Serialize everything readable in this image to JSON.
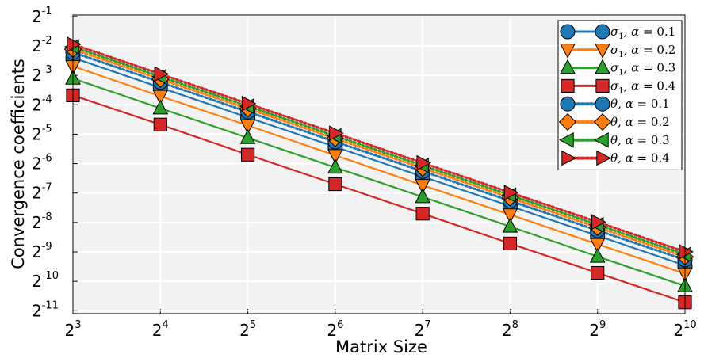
{
  "chart_data": {
    "type": "line",
    "title": "",
    "xlabel": "Matrix Size",
    "ylabel": "Convergence coefficients",
    "xscale": "log2",
    "yscale": "log2",
    "xlim_exp": [
      3,
      10
    ],
    "ylim_exp": [
      -11.1,
      -0.95
    ],
    "grid": true,
    "legend_position": "top-right",
    "x_tick_labels": [
      {
        "base": "2",
        "exp": "3"
      },
      {
        "base": "2",
        "exp": "4"
      },
      {
        "base": "2",
        "exp": "5"
      },
      {
        "base": "2",
        "exp": "6"
      },
      {
        "base": "2",
        "exp": "7"
      },
      {
        "base": "2",
        "exp": "8"
      },
      {
        "base": "2",
        "exp": "9"
      },
      {
        "base": "2",
        "exp": "10"
      }
    ],
    "y_tick_labels": [
      {
        "base": "2",
        "exp": "-1"
      },
      {
        "base": "2",
        "exp": "-2"
      },
      {
        "base": "2",
        "exp": "-3"
      },
      {
        "base": "2",
        "exp": "-4"
      },
      {
        "base": "2",
        "exp": "-5"
      },
      {
        "base": "2",
        "exp": "-6"
      },
      {
        "base": "2",
        "exp": "-7"
      },
      {
        "base": "2",
        "exp": "-8"
      },
      {
        "base": "2",
        "exp": "-9"
      },
      {
        "base": "2",
        "exp": "-10"
      },
      {
        "base": "2",
        "exp": "-11"
      }
    ],
    "x": [
      8,
      16,
      32,
      64,
      128,
      256,
      512,
      1024
    ],
    "series": [
      {
        "name": "σ₁, α = 0.1",
        "symbol": "sigma",
        "alpha_text": "0.1",
        "color": "#1f77b4",
        "marker": "circle",
        "dash": false,
        "values": [
          0.1895,
          0.0938,
          0.0464,
          0.0232,
          0.0115,
          0.00575,
          0.00286,
          0.00142
        ]
      },
      {
        "name": "σ₁, α = 0.2",
        "symbol": "sigma",
        "alpha_text": "0.2",
        "color": "#ff7f0e",
        "marker": "triangle-down",
        "dash": false,
        "values": [
          0.155,
          0.0766,
          0.0384,
          0.019,
          0.0094,
          0.0047,
          0.00234,
          0.00117
        ]
      },
      {
        "name": "σ₁, α = 0.3",
        "symbol": "sigma",
        "alpha_text": "0.3",
        "color": "#2ca02c",
        "marker": "triangle-up",
        "dash": false,
        "values": [
          0.1161,
          0.0576,
          0.0287,
          0.01428,
          0.00713,
          0.00355,
          0.00175,
          0.000875
        ]
      },
      {
        "name": "σ₁, α = 0.4",
        "symbol": "sigma",
        "alpha_text": "0.4",
        "color": "#d62728",
        "marker": "square",
        "dash": false,
        "values": [
          0.0781,
          0.0392,
          0.0193,
          0.00963,
          0.00481,
          0.00238,
          0.00119,
          0.000595
        ]
      },
      {
        "name": "θ, α = 0.1",
        "symbol": "theta",
        "alpha_text": "0.1",
        "color": "#1f77b4",
        "marker": "circle",
        "dash": true,
        "values": [
          0.215,
          0.1064,
          0.053,
          0.0262,
          0.01305,
          0.0065,
          0.00324,
          0.00162
        ]
      },
      {
        "name": "θ, α = 0.2",
        "symbol": "theta",
        "alpha_text": "0.2",
        "color": "#ff7f0e",
        "marker": "diamond",
        "dash": true,
        "values": [
          0.231,
          0.1143,
          0.057,
          0.0283,
          0.01405,
          0.007,
          0.00348,
          0.00174
        ]
      },
      {
        "name": "θ, α = 0.3",
        "symbol": "theta",
        "alpha_text": "0.3",
        "color": "#2ca02c",
        "marker": "triangle-left",
        "dash": true,
        "values": [
          0.245,
          0.1213,
          0.0605,
          0.03,
          0.01495,
          0.00744,
          0.00371,
          0.00184
        ]
      },
      {
        "name": "θ, α = 0.4",
        "symbol": "theta",
        "alpha_text": "0.4",
        "color": "#d62728",
        "marker": "triangle-right",
        "dash": true,
        "values": [
          0.26,
          0.129,
          0.0643,
          0.032,
          0.0159,
          0.00791,
          0.00395,
          0.00196
        ]
      }
    ]
  }
}
